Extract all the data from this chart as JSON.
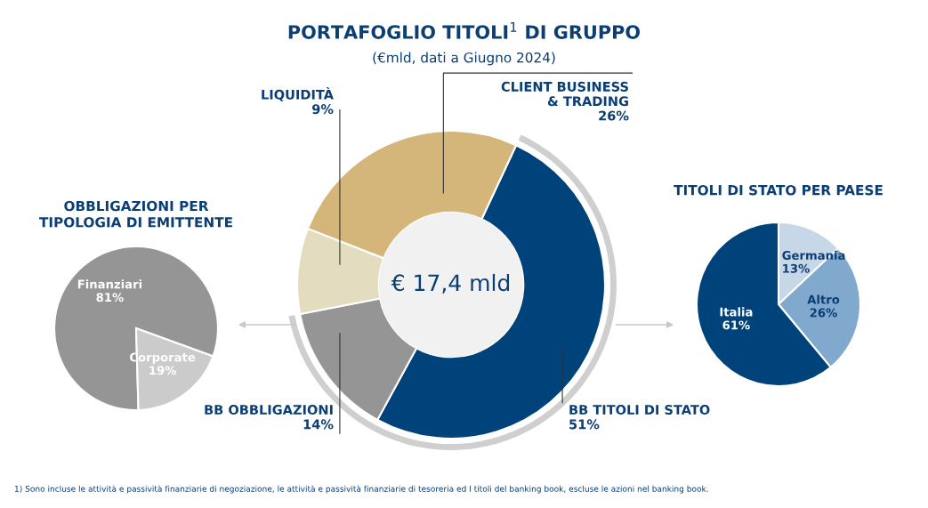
{
  "chart_data": [
    {
      "type": "donut",
      "title": "PORTAFOGLIO TITOLI$^{1}$ DI GRUPPO",
      "subtitle": "(€mld, dati a Giugno 2024)",
      "categories": [
        "BB TITOLI DI STATO",
        "BB OBBLIGAZIONI",
        "LIQUIDITÀ",
        "CLIENT BUSINESS\n& TRADING"
      ],
      "values": [
        51,
        14,
        9,
        26
      ],
      "colors": [
        "#00427a",
        "#959595",
        "#e4dcbe",
        "#d4b67a"
      ],
      "value_labels": [
        "51%",
        "14%",
        "9%",
        "26%"
      ],
      "data_labels": true,
      "legend": false,
      "annotations": [
        "€ 17,4 mld",
        "1) Sono incluse le attività e passività finanziarie di negoziazione, le attività e passività finanziarie di tesoreria ed I titoli del banking book, escluse le azioni nel banking book."
      ]
    },
    {
      "type": "pie",
      "title": "OBBLIGAZIONI PER\nTIPOLOGIA DI EMITTENTE",
      "categories": [
        "Finanziari",
        "Corporate"
      ],
      "values": [
        81,
        19
      ],
      "colors": [
        "#959595",
        "#cbcbcb"
      ],
      "value_labels": [
        "81%",
        "19%"
      ],
      "data_labels": true,
      "legend": false
    },
    {
      "type": "pie",
      "title": "TITOLI DI STATO PER PAESE",
      "categories": [
        "Germania",
        "Altro",
        "Italia"
      ],
      "values": [
        13,
        26,
        61
      ],
      "colors": [
        "#c6d7e8",
        "#80a9cd",
        "#00427a"
      ],
      "value_labels": [
        "13%",
        "26%",
        "61%"
      ],
      "data_labels": true,
      "legend": false
    }
  ]
}
